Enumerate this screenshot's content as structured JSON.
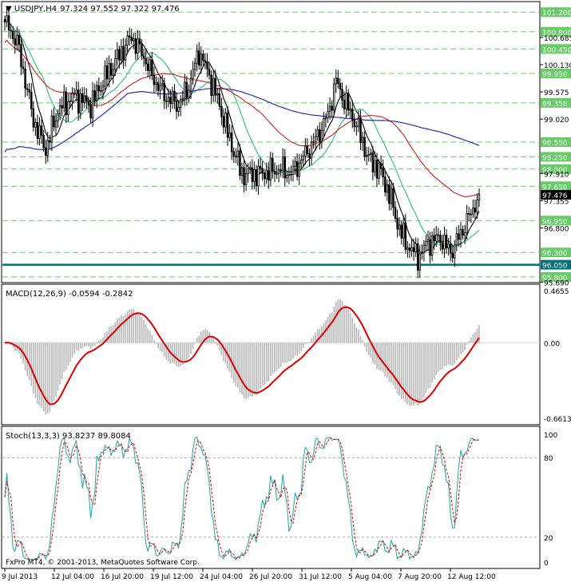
{
  "chart_data": [
    {
      "type": "candlestick",
      "title": "USDJPY,H4",
      "ohlc_text": "97.324 97.552 97.322 97.476",
      "ylim": [
        95.75,
        101.35
      ],
      "price_ticks": [
        "100.685",
        "100.130",
        "99.575",
        "99.020",
        "97.910",
        "97.355",
        "96.800",
        "95.690"
      ],
      "levels": [
        {
          "value": 101.2,
          "label": "101.200"
        },
        {
          "value": 100.8,
          "label": "100.800"
        },
        {
          "value": 100.45,
          "label": "100.450"
        },
        {
          "value": 99.95,
          "label": "99.950"
        },
        {
          "value": 99.35,
          "label": "99.350"
        },
        {
          "value": 98.55,
          "label": "98.550"
        },
        {
          "value": 98.25,
          "label": "98.250"
        },
        {
          "value": 98.0,
          "label": "98.000"
        },
        {
          "value": 97.65,
          "label": "97.650"
        },
        {
          "value": 96.95,
          "label": "96.950"
        },
        {
          "value": 96.3,
          "label": "96.300"
        },
        {
          "value": 96.05,
          "label": "96.050",
          "key": true
        },
        {
          "value": 95.8,
          "label": "95.800"
        }
      ],
      "current_price": "97.476",
      "close_anchors": [
        [
          0,
          101.0
        ],
        [
          6,
          100.6
        ],
        [
          10,
          99.8
        ],
        [
          14,
          99.0
        ],
        [
          20,
          98.4
        ],
        [
          26,
          99.2
        ],
        [
          34,
          99.5
        ],
        [
          42,
          99.3
        ],
        [
          48,
          99.8
        ],
        [
          54,
          100.2
        ],
        [
          62,
          100.7
        ],
        [
          68,
          100.3
        ],
        [
          72,
          99.9
        ],
        [
          78,
          99.5
        ],
        [
          85,
          99.3
        ],
        [
          90,
          99.7
        ],
        [
          95,
          100.4
        ],
        [
          100,
          99.9
        ],
        [
          105,
          99.3
        ],
        [
          110,
          98.6
        ],
        [
          116,
          97.9
        ],
        [
          124,
          97.9
        ],
        [
          135,
          98.0
        ],
        [
          140,
          97.9
        ],
        [
          147,
          98.3
        ],
        [
          152,
          98.6
        ],
        [
          158,
          99.1
        ],
        [
          162,
          99.8
        ],
        [
          166,
          99.4
        ],
        [
          172,
          98.9
        ],
        [
          178,
          98.2
        ],
        [
          183,
          98.0
        ],
        [
          188,
          97.5
        ],
        [
          192,
          96.9
        ],
        [
          196,
          96.5
        ],
        [
          202,
          96.2
        ],
        [
          207,
          96.5
        ],
        [
          213,
          96.6
        ],
        [
          218,
          96.3
        ],
        [
          222,
          96.6
        ],
        [
          228,
          97.1
        ],
        [
          232,
          97.48
        ]
      ],
      "moving_averages": [
        {
          "name": "",
          "period": 20,
          "color": "#000000"
        },
        {
          "name": "",
          "period": 55,
          "color": "#2ec27e"
        },
        {
          "name": "",
          "period": 100,
          "color": "#d21e1e"
        },
        {
          "name": "",
          "period": 200,
          "color": "#1a1ab8"
        }
      ]
    },
    {
      "type": "histogram+line",
      "title": "MACD(12,26,9) -0.0594 -0.2842",
      "ylim": [
        -0.6613,
        0.4655
      ],
      "y_ticks": [
        "0.4655",
        "0.00",
        "-0.6613"
      ],
      "histogram_color": "#b8b8b8",
      "signal_color": "#e00000"
    },
    {
      "type": "line",
      "title": "Stoch(13,3,3) 93.8237 89.8084",
      "ylim": [
        0,
        100
      ],
      "y_ticks": [
        "100",
        "80",
        "20",
        "0"
      ],
      "main_color": "#1aa5a5",
      "signal_color": "#e00000",
      "levels": [
        80,
        20
      ]
    }
  ],
  "x_labels": [
    "9 Jul 2013",
    "12 Jul 04:00",
    "16 Jul 20:00",
    "19 Jul 12:00",
    "24 Jul 04:00",
    "26 Jul 20:00",
    "31 Jul 12:00",
    "5 Aug 04:00",
    "7 Aug 20:00",
    "12 Aug 12:00"
  ],
  "watermark": "FxPro MT4, © 2001-2013, MetaQuotes Software Corp.",
  "colors": {
    "level_line": "#66cc66",
    "level_label": "#66cc66",
    "key_level": "#00707a",
    "price_label": "#000000"
  }
}
